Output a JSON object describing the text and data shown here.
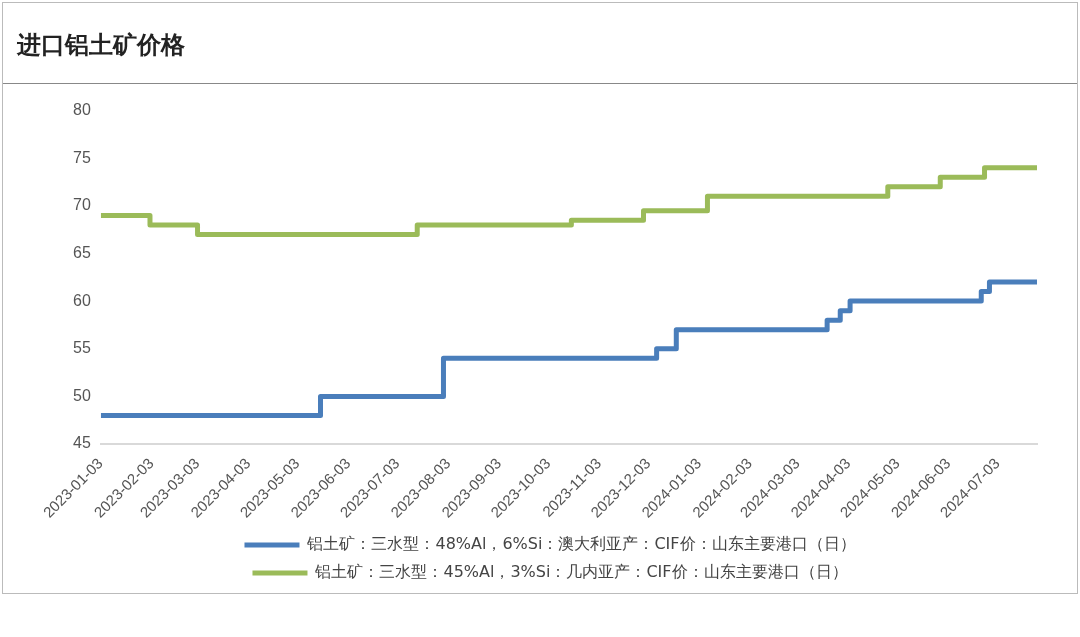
{
  "chart_data": {
    "type": "step",
    "title": "进口铝土矿价格",
    "series": [
      {
        "name": "铝土矿：三水型：48%Al，6%Si：澳大利亚产：CIF价：山东主要港口（日）",
        "color": "#4a7ebb",
        "x": [
          "2023-01-03",
          "2023-05-17",
          "2023-07-31",
          "2023-12-08",
          "2023-12-20",
          "2024-03-21",
          "2024-03-29",
          "2024-04-04",
          "2024-06-23",
          "2024-06-28",
          "2024-07-27"
        ],
        "values": [
          48,
          50,
          54,
          55,
          57,
          58,
          59,
          60,
          61,
          62,
          62
        ]
      },
      {
        "name": "铝土矿：三水型：45%Al，3%Si：几内亚产：CIF价：山东主要港口（日）",
        "color": "#9bbb59",
        "x": [
          "2023-01-03",
          "2023-02-02",
          "2023-03-03",
          "2023-07-15",
          "2023-10-17",
          "2023-11-30",
          "2024-01-08",
          "2024-04-27",
          "2024-05-29",
          "2024-06-25",
          "2024-07-27"
        ],
        "values": [
          69,
          68,
          67,
          68,
          68.5,
          69.5,
          71,
          72,
          73,
          74,
          74
        ]
      }
    ],
    "xlim": [
      "2023-01-03",
      "2024-07-27"
    ],
    "xticks": [
      "2023-01-03",
      "2023-02-03",
      "2023-03-03",
      "2023-04-03",
      "2023-05-03",
      "2023-06-03",
      "2023-07-03",
      "2023-08-03",
      "2023-09-03",
      "2023-10-03",
      "2023-11-03",
      "2023-12-03",
      "2024-01-03",
      "2024-02-03",
      "2024-03-03",
      "2024-04-03",
      "2024-05-03",
      "2024-06-03",
      "2024-07-03"
    ],
    "ylim": [
      45,
      80
    ],
    "yticks": [
      45,
      50,
      55,
      60,
      65,
      70,
      75,
      80
    ],
    "grid": false,
    "legend": "bottom",
    "marker": "none",
    "line_style": "solid"
  }
}
